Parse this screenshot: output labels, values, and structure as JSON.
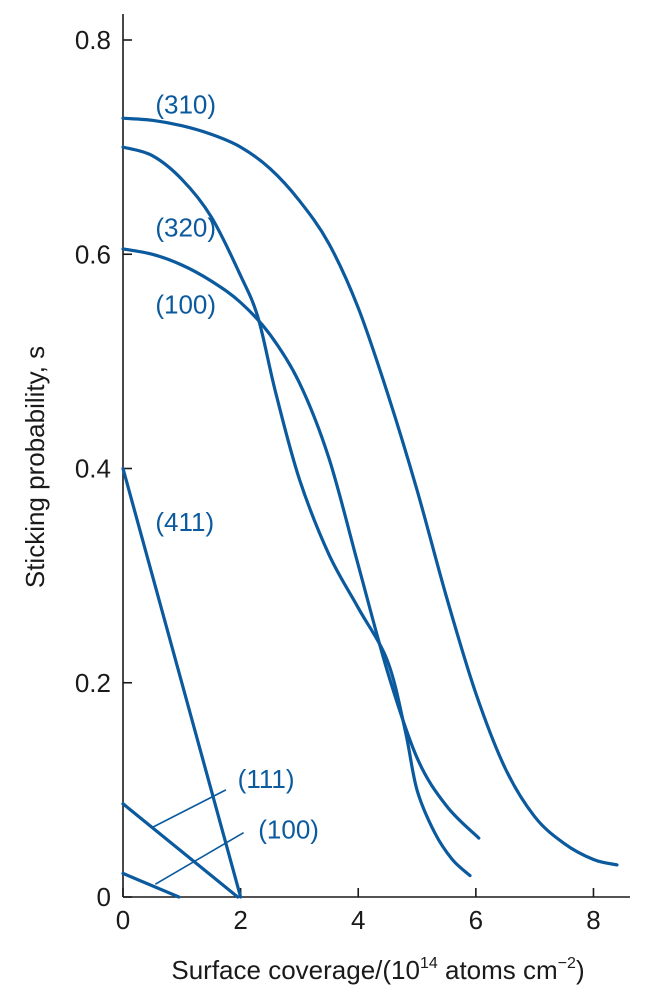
{
  "chart_data": {
    "type": "line",
    "title": "",
    "xlabel": "Surface coverage/(10",
    "xlabel_sup": "14",
    "xlabel_rest": " atoms cm",
    "xlabel_sup2": "−2",
    "xlabel_end": ")",
    "ylabel": "Sticking probability, s",
    "xlim": [
      0,
      8.4
    ],
    "ylim": [
      0,
      0.8
    ],
    "xticks": [
      0,
      2,
      4,
      6,
      8
    ],
    "xtick_labels": [
      "0",
      "2",
      "4",
      "6",
      "8"
    ],
    "yticks": [
      0,
      0.2,
      0.4,
      0.6,
      0.8
    ],
    "ytick_labels": [
      "0",
      "0.2",
      "0.4",
      "0.6",
      "0.8"
    ],
    "grid": false,
    "legend": "none",
    "colors": {
      "series": "#0b5a9e",
      "axis": "#1a1a1a"
    },
    "series": [
      {
        "name": "(310)",
        "x": [
          0,
          0.5,
          1,
          1.5,
          2,
          2.5,
          3,
          3.5,
          4,
          4.5,
          5,
          5.5,
          6,
          6.5,
          7,
          7.5,
          8,
          8.4
        ],
        "y": [
          0.727,
          0.725,
          0.72,
          0.712,
          0.7,
          0.68,
          0.65,
          0.61,
          0.55,
          0.47,
          0.38,
          0.28,
          0.19,
          0.12,
          0.075,
          0.05,
          0.035,
          0.03
        ]
      },
      {
        "name": "(320)",
        "x": [
          0,
          0.5,
          1,
          1.5,
          2,
          2.3,
          2.6,
          3,
          3.5,
          4,
          4.5,
          4.8,
          5,
          5.3,
          5.6,
          5.9
        ],
        "y": [
          0.7,
          0.692,
          0.67,
          0.635,
          0.58,
          0.54,
          0.47,
          0.39,
          0.32,
          0.27,
          0.22,
          0.155,
          0.1,
          0.06,
          0.035,
          0.02
        ]
      },
      {
        "name": "(100)",
        "x": [
          0,
          0.5,
          1,
          1.5,
          2,
          2.5,
          3,
          3.5,
          4,
          4.5,
          5,
          5.5,
          6.05
        ],
        "y": [
          0.605,
          0.6,
          0.59,
          0.575,
          0.555,
          0.525,
          0.48,
          0.41,
          0.31,
          0.21,
          0.13,
          0.085,
          0.055
        ]
      },
      {
        "name": "(411)",
        "x": [
          0,
          2
        ],
        "y": [
          0.4,
          0
        ]
      },
      {
        "name": "(111)",
        "x": [
          0,
          1.95
        ],
        "y": [
          0.087,
          0
        ]
      },
      {
        "name": "(100)",
        "x": [
          0,
          0.95
        ],
        "y": [
          0.022,
          0
        ]
      }
    ],
    "series_labels": [
      {
        "text": "(310)",
        "x": 0.55,
        "y": 0.74
      },
      {
        "text": "(320)",
        "x": 0.55,
        "y": 0.625
      },
      {
        "text": "(100)",
        "x": 0.55,
        "y": 0.553
      },
      {
        "text": "(411)",
        "x": 0.55,
        "y": 0.35
      },
      {
        "text": "(111)",
        "x": 1.95,
        "y": 0.11,
        "leader": [
          0.5,
          0.065,
          1.75,
          0.1
        ]
      },
      {
        "text": "(100)",
        "x": 2.3,
        "y": 0.063,
        "leader": [
          0.55,
          0.012,
          2.05,
          0.06
        ]
      }
    ]
  }
}
